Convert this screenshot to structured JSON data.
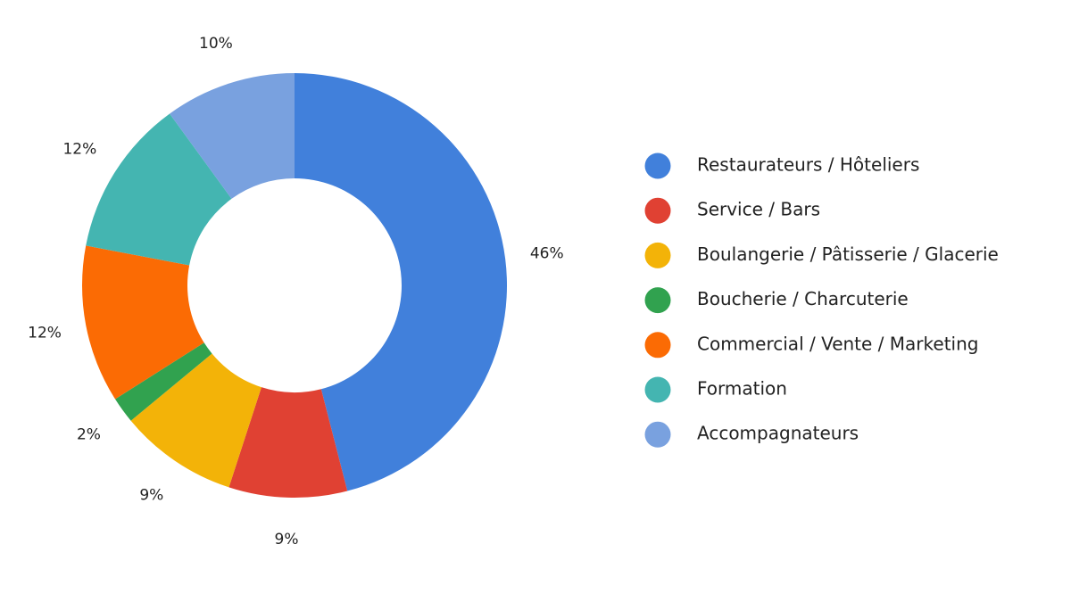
{
  "chart_data": {
    "type": "pie",
    "donut": true,
    "legend_position": "right",
    "slices": [
      {
        "label": "Restaurateurs / Hôteliers",
        "value": 46,
        "display": "46%",
        "color": "#4180DB"
      },
      {
        "label": "Service / Bars",
        "value": 9,
        "display": "9%",
        "color": "#E04133"
      },
      {
        "label": "Boulangerie / Pâtisserie / Glacerie",
        "value": 9,
        "display": "9%",
        "color": "#F3B308"
      },
      {
        "label": "Boucherie / Charcuterie",
        "value": 2,
        "display": "2%",
        "color": "#31A24F"
      },
      {
        "label": "Commercial / Vente / Marketing",
        "value": 12,
        "display": "12%",
        "color": "#FB6B04"
      },
      {
        "label": "Formation",
        "value": 12,
        "display": "12%",
        "color": "#44B5B1"
      },
      {
        "label": "Accompagnateurs",
        "value": 10,
        "display": "10%",
        "color": "#79A1DF"
      }
    ]
  }
}
